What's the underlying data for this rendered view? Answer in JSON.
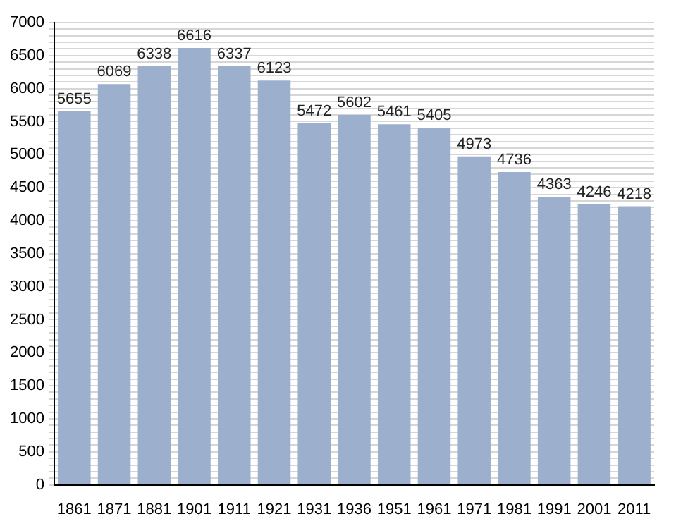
{
  "chart_data": {
    "type": "bar",
    "categories": [
      "1861",
      "1871",
      "1881",
      "1901",
      "1911",
      "1921",
      "1931",
      "1936",
      "1951",
      "1961",
      "1971",
      "1981",
      "1991",
      "2001",
      "2011"
    ],
    "values": [
      5655,
      6069,
      6338,
      6616,
      6337,
      6123,
      5472,
      5602,
      5461,
      5405,
      4973,
      4736,
      4363,
      4246,
      4218
    ],
    "color": "#9cb0cd",
    "ylim": [
      0,
      7000
    ],
    "yticks": [
      0,
      {
        "value": 100,
        "label": null
      },
      {
        "value": 200,
        "label": null
      },
      {
        "value": 300,
        "label": null
      },
      {
        "value": 400,
        "label": null
      },
      500,
      {
        "value": 600,
        "label": null
      },
      {
        "value": 700,
        "label": null
      },
      {
        "value": 800,
        "label": null
      },
      {
        "value": 900,
        "label": null
      },
      1000,
      {
        "value": 1100,
        "label": null
      },
      {
        "value": 1200,
        "label": null
      },
      {
        "value": 1300,
        "label": null
      },
      {
        "value": 1400,
        "label": null
      },
      1500,
      {
        "value": 1600,
        "label": null
      },
      {
        "value": 1700,
        "label": null
      },
      {
        "value": 1800,
        "label": null
      },
      {
        "value": 1900,
        "label": null
      },
      2000,
      {
        "value": 2100,
        "label": null
      },
      {
        "value": 2200,
        "label": null
      },
      {
        "value": 2300,
        "label": null
      },
      {
        "value": 2400,
        "label": null
      },
      2500,
      {
        "value": 2600,
        "label": null
      },
      {
        "value": 2700,
        "label": null
      },
      {
        "value": 2800,
        "label": null
      },
      {
        "value": 2900,
        "label": null
      },
      3000,
      {
        "value": 3100,
        "label": null
      },
      {
        "value": 3200,
        "label": null
      },
      {
        "value": 3300,
        "label": null
      },
      {
        "value": 3400,
        "label": null
      },
      3500,
      {
        "value": 3600,
        "label": null
      },
      {
        "value": 3700,
        "label": null
      },
      {
        "value": 3800,
        "label": null
      },
      {
        "value": 3900,
        "label": null
      },
      4000,
      {
        "value": 4100,
        "label": null
      },
      {
        "value": 4200,
        "label": null
      },
      {
        "value": 4300,
        "label": null
      },
      {
        "value": 4400,
        "label": null
      },
      4500,
      {
        "value": 4600,
        "label": null
      },
      {
        "value": 4700,
        "label": null
      },
      {
        "value": 4800,
        "label": null
      },
      {
        "value": 4900,
        "label": null
      },
      5000,
      {
        "value": 5100,
        "label": null
      },
      {
        "value": 5200,
        "label": null
      },
      {
        "value": 5300,
        "label": null
      },
      {
        "value": 5400,
        "label": null
      },
      5500,
      {
        "value": 5600,
        "label": null
      },
      {
        "value": 5700,
        "label": null
      },
      {
        "value": 5800,
        "label": null
      },
      {
        "value": 5900,
        "label": null
      },
      6000,
      {
        "value": 6100,
        "label": null
      },
      {
        "value": 6200,
        "label": null
      },
      {
        "value": 6300,
        "label": null
      },
      {
        "value": 6400,
        "label": null
      },
      6500,
      {
        "value": 6600,
        "label": null
      },
      {
        "value": 6700,
        "label": null
      },
      {
        "value": 6800,
        "label": null
      },
      {
        "value": 6900,
        "label": null
      },
      7000
    ],
    "grid": "y",
    "data_labels": true
  }
}
